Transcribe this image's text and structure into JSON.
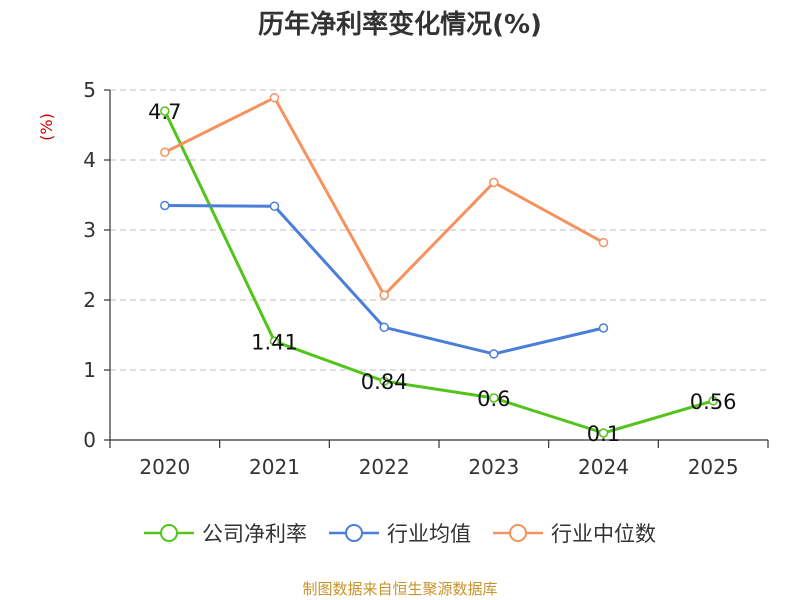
{
  "chart_data": {
    "type": "line",
    "title": "历年净利率变化情况(%)",
    "ylabel": "(%)",
    "xlabel": "",
    "ylim": [
      0,
      5
    ],
    "yticks": [
      "0",
      "1",
      "2",
      "3",
      "4",
      "5"
    ],
    "categories": [
      "2020",
      "2021",
      "2022",
      "2023",
      "2024",
      "2025"
    ],
    "series": [
      {
        "name": "公司净利率",
        "color": "#52c41a",
        "values": [
          4.7,
          1.41,
          0.84,
          0.6,
          0.1,
          0.56
        ],
        "labels": [
          "4.7",
          "1.41",
          "0.84",
          "0.6",
          "0.1",
          "0.56"
        ]
      },
      {
        "name": "行业均值",
        "color": "#4a7fd9",
        "values": [
          3.35,
          3.34,
          1.61,
          1.23,
          1.6,
          null
        ]
      },
      {
        "name": "行业中位数",
        "color": "#f5925e",
        "values": [
          4.11,
          4.89,
          2.07,
          3.68,
          2.82,
          null
        ]
      }
    ],
    "legend_position": "bottom",
    "grid": true
  },
  "footer": {
    "text": "制图数据来自恒生聚源数据库",
    "color": "#c8932a"
  },
  "ylabel_color": "#cc0000"
}
